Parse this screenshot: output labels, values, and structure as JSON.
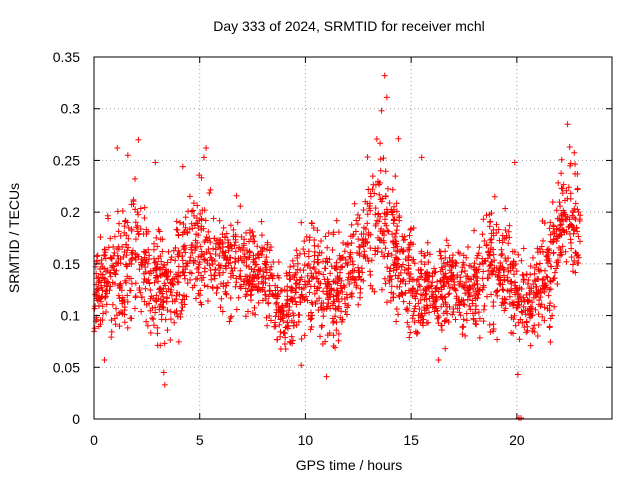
{
  "chart_data": {
    "type": "scatter",
    "title": "Day 333 of 2024, SRMTID for receiver mchl",
    "xlabel": "GPS time / hours",
    "ylabel": "SRMTID / TECUs",
    "xlim": [
      0,
      24.5
    ],
    "ylim": [
      0,
      0.35
    ],
    "xticks": [
      0,
      5,
      10,
      15,
      20
    ],
    "xtick_labels": [
      "0",
      "5",
      "10",
      "15",
      "20"
    ],
    "yticks": [
      0,
      0.05,
      0.1,
      0.15,
      0.2,
      0.25,
      0.3,
      0.35
    ],
    "ytick_labels": [
      "0",
      "0.05",
      "0.1",
      "0.15",
      "0.2",
      "0.25",
      "0.3",
      "0.35"
    ],
    "grid": true,
    "marker": "plus",
    "color": "#ff0000",
    "series": [
      {
        "name": "SRMTID",
        "profile_hours": [
          0,
          0.5,
          1,
          1.5,
          2,
          2.5,
          3,
          3.5,
          4,
          4.5,
          5,
          5.5,
          6,
          6.5,
          7,
          7.5,
          8,
          8.5,
          9,
          9.5,
          10,
          10.5,
          11,
          11.5,
          12,
          12.5,
          13,
          13.5,
          14,
          14.5,
          15,
          15.5,
          16,
          16.5,
          17,
          17.5,
          18,
          18.5,
          19,
          19.5,
          20,
          20.5,
          21,
          21.5,
          22,
          22.5,
          23
        ],
        "profile_center": [
          0.12,
          0.14,
          0.14,
          0.15,
          0.16,
          0.15,
          0.13,
          0.12,
          0.14,
          0.15,
          0.17,
          0.16,
          0.15,
          0.16,
          0.15,
          0.14,
          0.14,
          0.12,
          0.1,
          0.12,
          0.14,
          0.13,
          0.12,
          0.13,
          0.14,
          0.15,
          0.18,
          0.2,
          0.17,
          0.15,
          0.13,
          0.12,
          0.13,
          0.12,
          0.13,
          0.12,
          0.13,
          0.14,
          0.15,
          0.14,
          0.12,
          0.11,
          0.13,
          0.14,
          0.18,
          0.2,
          0.19
        ],
        "profile_spread": [
          0.03,
          0.04,
          0.05,
          0.05,
          0.06,
          0.05,
          0.05,
          0.04,
          0.05,
          0.05,
          0.06,
          0.05,
          0.04,
          0.05,
          0.04,
          0.04,
          0.04,
          0.04,
          0.03,
          0.04,
          0.05,
          0.05,
          0.05,
          0.05,
          0.05,
          0.05,
          0.06,
          0.07,
          0.06,
          0.05,
          0.05,
          0.04,
          0.04,
          0.04,
          0.04,
          0.04,
          0.04,
          0.05,
          0.05,
          0.05,
          0.04,
          0.04,
          0.05,
          0.05,
          0.05,
          0.05,
          0.04
        ],
        "outliers": [
          [
            0.5,
            0.057
          ],
          [
            1.1,
            0.262
          ],
          [
            1.6,
            0.255
          ],
          [
            2.1,
            0.27
          ],
          [
            2.9,
            0.248
          ],
          [
            3.3,
            0.045
          ],
          [
            3.35,
            0.033
          ],
          [
            4.2,
            0.244
          ],
          [
            5.3,
            0.262
          ],
          [
            5.2,
            0.253
          ],
          [
            9.8,
            0.052
          ],
          [
            11.0,
            0.041
          ],
          [
            13.6,
            0.298
          ],
          [
            13.75,
            0.332
          ],
          [
            13.85,
            0.311
          ],
          [
            14.4,
            0.271
          ],
          [
            15.5,
            0.253
          ],
          [
            16.3,
            0.057
          ],
          [
            19.9,
            0.248
          ],
          [
            20.05,
            0.043
          ],
          [
            20.1,
            0.001
          ],
          [
            20.2,
            0.001
          ],
          [
            22.4,
            0.285
          ],
          [
            22.5,
            0.263
          ],
          [
            22.55,
            0.247
          ]
        ]
      }
    ]
  }
}
